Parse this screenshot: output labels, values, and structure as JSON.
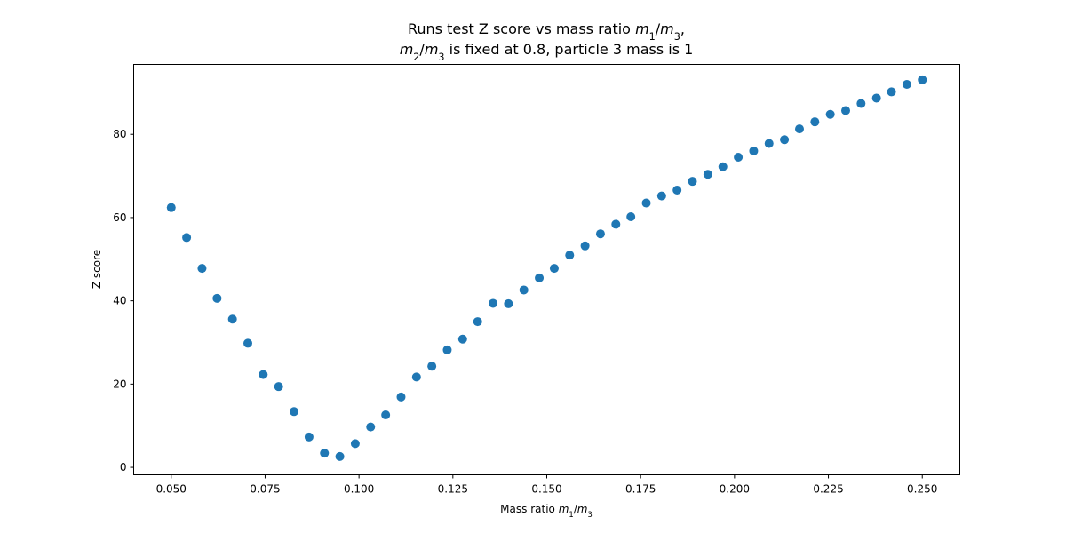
{
  "chart_data": {
    "type": "scatter",
    "title": [
      {
        "parts": [
          {
            "t": "Runs test Z score vs mass ratio "
          },
          {
            "t": "m",
            "i": true
          },
          {
            "t": "1",
            "sub": true
          },
          {
            "t": "/"
          },
          {
            "t": "m",
            "i": true
          },
          {
            "t": "3",
            "sub": true
          },
          {
            "t": ","
          }
        ]
      },
      {
        "parts": [
          {
            "t": "m",
            "i": true
          },
          {
            "t": "2",
            "sub": true
          },
          {
            "t": "/"
          },
          {
            "t": "m",
            "i": true
          },
          {
            "t": "3",
            "sub": true
          },
          {
            "t": " is fixed at 0.8, particle 3 mass is 1"
          }
        ]
      }
    ],
    "xlabel": [
      {
        "t": "Mass ratio "
      },
      {
        "t": "m",
        "i": true
      },
      {
        "t": "1",
        "sub": true
      },
      {
        "t": "/"
      },
      {
        "t": "m",
        "i": true
      },
      {
        "t": "3",
        "sub": true
      }
    ],
    "ylabel": "Z score",
    "xlim": [
      0.04,
      0.26
    ],
    "ylim": [
      -1.8,
      96.8
    ],
    "xticks": [
      "0.050",
      "0.075",
      "0.100",
      "0.125",
      "0.150",
      "0.175",
      "0.200",
      "0.225",
      "0.250"
    ],
    "yticks": [
      "0",
      "20",
      "40",
      "60",
      "80"
    ],
    "grid": false,
    "marker_color": "#1f77b4",
    "series": [
      {
        "x": [
          0.05,
          0.0541,
          0.0582,
          0.0622,
          0.0663,
          0.0704,
          0.0745,
          0.0786,
          0.0827,
          0.0867,
          0.0908,
          0.0949,
          0.099,
          0.1031,
          0.1071,
          0.1112,
          0.1153,
          0.1194,
          0.1235,
          0.1276,
          0.1316,
          0.1357,
          0.1398,
          0.1439,
          0.148,
          0.152,
          0.1561,
          0.1602,
          0.1643,
          0.1684,
          0.1724,
          0.1765,
          0.1806,
          0.1847,
          0.1888,
          0.1929,
          0.1969,
          0.201,
          0.2051,
          0.2092,
          0.2133,
          0.2173,
          0.2214,
          0.2255,
          0.2296,
          0.2337,
          0.2378,
          0.2418,
          0.2459,
          0.25
        ],
        "y": [
          62.4,
          55.2,
          47.8,
          40.6,
          35.6,
          29.8,
          22.3,
          19.4,
          13.4,
          7.3,
          3.4,
          2.6,
          5.7,
          9.7,
          12.6,
          16.9,
          21.7,
          24.3,
          28.2,
          30.8,
          35.0,
          39.4,
          39.3,
          42.6,
          45.5,
          47.8,
          51.0,
          53.2,
          56.1,
          58.4,
          60.2,
          63.5,
          65.2,
          66.6,
          68.7,
          70.4,
          72.2,
          74.5,
          76.0,
          77.8,
          78.7,
          81.3,
          83.0,
          84.8,
          85.7,
          87.4,
          88.7,
          90.2,
          92.0,
          93.1
        ]
      }
    ]
  }
}
